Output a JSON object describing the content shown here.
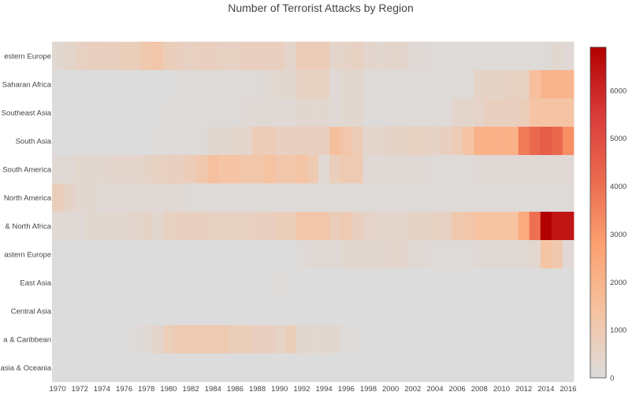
{
  "chart_data": {
    "type": "heatmap",
    "title": "Number of Terrorist Attacks by Region",
    "x_ticks": [
      "1970",
      "1972",
      "1974",
      "1976",
      "1978",
      "1980",
      "1982",
      "1984",
      "1986",
      "1988",
      "1990",
      "1992",
      "1994",
      "1996",
      "1998",
      "2000",
      "2002",
      "2004",
      "2006",
      "2008",
      "2010",
      "2012",
      "2014",
      "2016"
    ],
    "x": [
      1970,
      1971,
      1972,
      1973,
      1974,
      1975,
      1976,
      1977,
      1978,
      1979,
      1980,
      1981,
      1982,
      1983,
      1984,
      1985,
      1986,
      1987,
      1988,
      1989,
      1990,
      1991,
      1992,
      1993,
      1994,
      1995,
      1996,
      1997,
      1998,
      1999,
      2000,
      2001,
      2002,
      2003,
      2004,
      2005,
      2006,
      2007,
      2008,
      2009,
      2010,
      2011,
      2012,
      2013,
      2014,
      2015,
      2016
    ],
    "y_labels_visible": [
      "estern Europe",
      "Saharan Africa",
      "Southeast Asia",
      "South Asia",
      "South America",
      "North America",
      "& North Africa",
      "astern Europe",
      "East Asia",
      "Central Asia",
      "a & Caribbean",
      "asia & Oceania"
    ],
    "colorscale": [
      {
        "stop": 0,
        "color": "#dcdcdc"
      },
      {
        "stop": 0.2,
        "color": "#f5c3a2"
      },
      {
        "stop": 0.4,
        "color": "#fca170"
      },
      {
        "stop": 0.6,
        "color": "#eb6a4f"
      },
      {
        "stop": 0.8,
        "color": "#d93a3a"
      },
      {
        "stop": 1,
        "color": "#b20000"
      }
    ],
    "zmin": 0,
    "zmax": 6900,
    "colorbar_ticks": [
      "0",
      "1000",
      "2000",
      "3000",
      "4000",
      "5000",
      "6000"
    ],
    "colorbar_tick_values": [
      0,
      1000,
      2000,
      3000,
      4000,
      5000,
      6000
    ],
    "z": [
      [
        300,
        400,
        600,
        700,
        700,
        700,
        800,
        800,
        1100,
        1200,
        800,
        700,
        600,
        700,
        700,
        600,
        600,
        700,
        700,
        700,
        700,
        400,
        900,
        900,
        900,
        400,
        500,
        600,
        400,
        300,
        400,
        400,
        200,
        200,
        100,
        100,
        100,
        100,
        100,
        100,
        100,
        100,
        100,
        100,
        100,
        300,
        200
      ],
      [
        0,
        0,
        0,
        0,
        0,
        0,
        0,
        0,
        0,
        0,
        0,
        100,
        100,
        100,
        100,
        100,
        100,
        100,
        100,
        200,
        300,
        300,
        600,
        600,
        600,
        200,
        300,
        300,
        100,
        100,
        100,
        100,
        100,
        100,
        100,
        100,
        100,
        100,
        500,
        500,
        500,
        600,
        600,
        1500,
        2000,
        2000,
        2000
      ],
      [
        0,
        0,
        0,
        0,
        0,
        0,
        0,
        0,
        0,
        0,
        100,
        100,
        100,
        100,
        100,
        100,
        100,
        200,
        200,
        200,
        200,
        200,
        300,
        300,
        300,
        200,
        300,
        300,
        100,
        100,
        100,
        100,
        100,
        100,
        100,
        100,
        400,
        400,
        500,
        700,
        700,
        700,
        800,
        1300,
        1300,
        1300,
        1300
      ],
      [
        0,
        0,
        0,
        0,
        0,
        0,
        0,
        0,
        0,
        100,
        100,
        100,
        100,
        100,
        300,
        300,
        400,
        400,
        900,
        900,
        700,
        700,
        700,
        700,
        700,
        1500,
        1200,
        900,
        400,
        400,
        500,
        500,
        600,
        600,
        500,
        700,
        900,
        1300,
        2100,
        2100,
        2100,
        2100,
        3700,
        4200,
        4500,
        4200,
        3200
      ],
      [
        200,
        200,
        300,
        300,
        300,
        400,
        400,
        400,
        500,
        600,
        700,
        700,
        900,
        1100,
        1500,
        1300,
        1300,
        1200,
        1200,
        1400,
        1200,
        1200,
        1300,
        1000,
        200,
        800,
        1000,
        1000,
        200,
        200,
        200,
        200,
        200,
        200,
        100,
        100,
        100,
        100,
        200,
        200,
        200,
        200,
        200,
        200,
        200,
        200,
        200
      ],
      [
        800,
        500,
        300,
        300,
        200,
        200,
        200,
        200,
        200,
        200,
        200,
        200,
        100,
        100,
        100,
        100,
        100,
        100,
        100,
        100,
        100,
        100,
        100,
        100,
        100,
        100,
        100,
        100,
        100,
        100,
        100,
        100,
        100,
        100,
        100,
        100,
        100,
        100,
        100,
        100,
        100,
        100,
        100,
        100,
        100,
        100,
        100
      ],
      [
        200,
        200,
        200,
        300,
        300,
        300,
        300,
        400,
        500,
        300,
        600,
        700,
        700,
        700,
        600,
        600,
        600,
        600,
        700,
        700,
        800,
        800,
        1200,
        1200,
        1200,
        800,
        1000,
        700,
        500,
        400,
        400,
        400,
        500,
        500,
        600,
        600,
        1100,
        1200,
        1400,
        1400,
        1400,
        1400,
        2400,
        4000,
        6900,
        6400,
        6400
      ],
      [
        0,
        0,
        0,
        0,
        0,
        0,
        0,
        0,
        0,
        0,
        0,
        0,
        0,
        0,
        0,
        0,
        0,
        0,
        0,
        0,
        0,
        0,
        100,
        200,
        200,
        200,
        300,
        300,
        300,
        300,
        400,
        400,
        200,
        200,
        100,
        100,
        100,
        100,
        200,
        200,
        200,
        200,
        200,
        300,
        1300,
        1100,
        200
      ],
      [
        0,
        0,
        0,
        0,
        0,
        0,
        0,
        0,
        0,
        0,
        0,
        0,
        0,
        0,
        0,
        0,
        0,
        0,
        0,
        0,
        100,
        0,
        0,
        0,
        0,
        0,
        0,
        0,
        0,
        0,
        0,
        0,
        0,
        0,
        0,
        0,
        0,
        0,
        0,
        0,
        0,
        0,
        0,
        0,
        0,
        0,
        0
      ],
      [
        0,
        0,
        0,
        0,
        0,
        0,
        0,
        0,
        0,
        0,
        0,
        0,
        0,
        0,
        0,
        0,
        0,
        0,
        0,
        0,
        0,
        0,
        0,
        0,
        0,
        0,
        0,
        0,
        0,
        0,
        0,
        0,
        0,
        0,
        0,
        0,
        0,
        0,
        0,
        0,
        0,
        0,
        0,
        0,
        0,
        0,
        0
      ],
      [
        0,
        0,
        0,
        0,
        0,
        0,
        0,
        100,
        200,
        400,
        800,
        1000,
        1000,
        1000,
        1000,
        1000,
        800,
        800,
        700,
        700,
        500,
        800,
        300,
        300,
        300,
        300,
        100,
        100,
        0,
        0,
        0,
        0,
        0,
        0,
        0,
        0,
        0,
        0,
        0,
        0,
        0,
        0,
        0,
        0,
        0,
        0,
        0
      ],
      [
        0,
        0,
        0,
        0,
        0,
        0,
        0,
        0,
        0,
        0,
        0,
        0,
        0,
        0,
        0,
        0,
        0,
        0,
        0,
        0,
        0,
        0,
        0,
        0,
        0,
        0,
        0,
        0,
        0,
        0,
        0,
        0,
        0,
        0,
        0,
        0,
        0,
        0,
        0,
        0,
        0,
        0,
        0,
        0,
        0,
        0,
        0
      ]
    ]
  }
}
